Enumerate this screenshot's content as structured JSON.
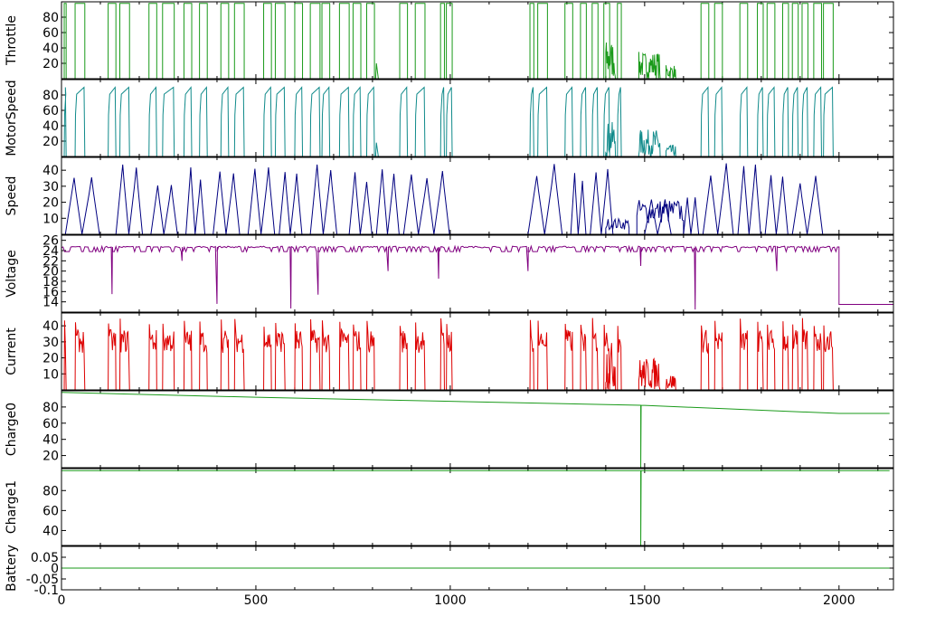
{
  "chart_data": [
    {
      "type": "line",
      "ylabel": "Throttle",
      "color": "#1a9a1a",
      "yticks": [
        20,
        40,
        60,
        80
      ],
      "ylim": [
        0,
        100
      ],
      "series": [
        {
          "style": "pulses",
          "pulses": [
            [
              7,
              12
            ],
            [
              35,
              60
            ],
            [
              120,
              140
            ],
            [
              150,
              175
            ],
            [
              225,
              245
            ],
            [
              260,
              290
            ],
            [
              315,
              335
            ],
            [
              355,
              375
            ],
            [
              410,
              430
            ],
            [
              445,
              470
            ],
            [
              520,
              540
            ],
            [
              550,
              575
            ],
            [
              600,
              620
            ],
            [
              640,
              665
            ],
            [
              670,
              690
            ],
            [
              715,
              740
            ],
            [
              750,
              770
            ],
            [
              785,
              805
            ],
            [
              870,
              890
            ],
            [
              910,
              935
            ],
            [
              975,
              985
            ],
            [
              990,
              1005
            ],
            [
              1205,
              1215
            ],
            [
              1225,
              1250
            ],
            [
              1295,
              1315
            ],
            [
              1335,
              1350
            ],
            [
              1365,
              1380
            ],
            [
              1395,
              1410
            ],
            [
              1430,
              1440
            ],
            [
              1645,
              1665
            ],
            [
              1680,
              1700
            ],
            [
              1745,
              1765
            ],
            [
              1790,
              1805
            ],
            [
              1815,
              1835
            ],
            [
              1855,
              1870
            ],
            [
              1880,
              1895
            ],
            [
              1905,
              1920
            ],
            [
              1935,
              1955
            ],
            [
              1960,
              1985
            ]
          ],
          "high": 98,
          "noisy": [
            [
              1400,
              1425,
              50
            ],
            [
              1485,
              1540,
              35
            ],
            [
              1555,
              1580,
              18
            ]
          ],
          "minor": [
            [
              808,
              815,
              20
            ]
          ]
        }
      ]
    },
    {
      "type": "line",
      "ylabel": "MotorSpeed",
      "color": "#0f8a8a",
      "yticks": [
        20,
        40,
        60,
        80
      ],
      "ylim": [
        0,
        100
      ],
      "series": [
        {
          "style": "humps",
          "pulses": [
            [
              7,
              12
            ],
            [
              35,
              60
            ],
            [
              120,
              140
            ],
            [
              150,
              175
            ],
            [
              225,
              245
            ],
            [
              260,
              290
            ],
            [
              315,
              335
            ],
            [
              355,
              375
            ],
            [
              410,
              430
            ],
            [
              445,
              470
            ],
            [
              520,
              540
            ],
            [
              550,
              575
            ],
            [
              600,
              620
            ],
            [
              640,
              665
            ],
            [
              670,
              690
            ],
            [
              715,
              740
            ],
            [
              750,
              770
            ],
            [
              785,
              805
            ],
            [
              870,
              890
            ],
            [
              910,
              935
            ],
            [
              975,
              985
            ],
            [
              990,
              1005
            ],
            [
              1205,
              1215
            ],
            [
              1225,
              1250
            ],
            [
              1295,
              1315
            ],
            [
              1335,
              1350
            ],
            [
              1365,
              1380
            ],
            [
              1395,
              1410
            ],
            [
              1430,
              1440
            ],
            [
              1645,
              1665
            ],
            [
              1680,
              1700
            ],
            [
              1745,
              1765
            ],
            [
              1790,
              1805
            ],
            [
              1815,
              1835
            ],
            [
              1855,
              1870
            ],
            [
              1880,
              1895
            ],
            [
              1905,
              1920
            ],
            [
              1935,
              1955
            ],
            [
              1960,
              1985
            ]
          ],
          "high": 90,
          "noisy": [
            [
              1400,
              1425,
              45
            ],
            [
              1485,
              1540,
              35
            ],
            [
              1555,
              1580,
              15
            ]
          ],
          "minor": [
            [
              808,
              815,
              18
            ]
          ]
        }
      ]
    },
    {
      "type": "line",
      "ylabel": "Speed",
      "color": "#000080",
      "yticks": [
        10,
        20,
        30,
        40
      ],
      "ylim": [
        0,
        48
      ],
      "series": [
        {
          "style": "speed",
          "segments": [
            [
              10,
              100
            ],
            [
              140,
              210
            ],
            [
              230,
              300
            ],
            [
              320,
              370
            ],
            [
              390,
              460
            ],
            [
              480,
              550
            ],
            [
              560,
              620
            ],
            [
              640,
              710
            ],
            [
              740,
              800
            ],
            [
              810,
              870
            ],
            [
              880,
              1000
            ],
            [
              1200,
              1290
            ],
            [
              1310,
              1350
            ],
            [
              1360,
              1420
            ],
            [
              1500,
              1570
            ],
            [
              1600,
              1640
            ],
            [
              1650,
              1730
            ],
            [
              1740,
              1800
            ],
            [
              1810,
              1870
            ],
            [
              1880,
              1960
            ]
          ],
          "peaks": [
            38,
            44,
            38,
            44,
            40,
            45,
            44,
            45,
            40,
            44,
            44,
            45,
            40,
            42,
            22,
            30,
            45,
            44,
            45,
            42
          ],
          "noisy": [
            [
              1400,
              1460,
              10
            ],
            [
              1480,
              1600,
              22
            ]
          ]
        }
      ]
    },
    {
      "type": "line",
      "ylabel": "Voltage",
      "color": "#800080",
      "yticks": [
        14,
        16,
        18,
        20,
        22,
        24,
        26
      ],
      "ylim": [
        12,
        27
      ],
      "series": [
        {
          "style": "voltage",
          "base": 24.7,
          "sag": 23.8,
          "end_x": 2000,
          "end_value": 13.5,
          "dips": [
            [
              130,
              15.5
            ],
            [
              310,
              22
            ],
            [
              400,
              13.6
            ],
            [
              590,
              12.7
            ],
            [
              660,
              15.4
            ],
            [
              840,
              20
            ],
            [
              970,
              18.5
            ],
            [
              1200,
              20
            ],
            [
              1490,
              21
            ],
            [
              1630,
              12.5
            ],
            [
              1840,
              20
            ]
          ]
        }
      ]
    },
    {
      "type": "line",
      "ylabel": "Current",
      "color": "#dd0000",
      "yticks": [
        10,
        20,
        30,
        40
      ],
      "ylim": [
        0,
        48
      ],
      "series": [
        {
          "style": "current",
          "pulses": [
            [
              7,
              12
            ],
            [
              35,
              60
            ],
            [
              120,
              140
            ],
            [
              150,
              175
            ],
            [
              225,
              245
            ],
            [
              260,
              290
            ],
            [
              315,
              335
            ],
            [
              355,
              375
            ],
            [
              410,
              430
            ],
            [
              445,
              470
            ],
            [
              520,
              540
            ],
            [
              550,
              575
            ],
            [
              600,
              620
            ],
            [
              640,
              665
            ],
            [
              670,
              690
            ],
            [
              715,
              740
            ],
            [
              750,
              770
            ],
            [
              785,
              805
            ],
            [
              870,
              890
            ],
            [
              910,
              935
            ],
            [
              975,
              985
            ],
            [
              990,
              1005
            ],
            [
              1205,
              1215
            ],
            [
              1225,
              1250
            ],
            [
              1295,
              1315
            ],
            [
              1335,
              1350
            ],
            [
              1365,
              1380
            ],
            [
              1395,
              1410
            ],
            [
              1430,
              1440
            ],
            [
              1645,
              1665
            ],
            [
              1680,
              1700
            ],
            [
              1745,
              1765
            ],
            [
              1790,
              1805
            ],
            [
              1815,
              1835
            ],
            [
              1855,
              1870
            ],
            [
              1880,
              1895
            ],
            [
              1905,
              1920
            ],
            [
              1935,
              1955
            ],
            [
              1960,
              1985
            ]
          ],
          "peak": 42,
          "noisy": [
            [
              1400,
              1425,
              30
            ],
            [
              1485,
              1540,
              20
            ],
            [
              1555,
              1580,
              10
            ]
          ]
        }
      ]
    },
    {
      "type": "line",
      "ylabel": "Charge0",
      "color": "#1a9a1a",
      "yticks": [
        20,
        40,
        60,
        80
      ],
      "ylim": [
        5,
        100
      ],
      "series": [
        {
          "style": "charge",
          "x": [
            0,
            500,
            1000,
            1500,
            2000,
            2130
          ],
          "y": [
            98,
            92,
            87,
            82,
            72,
            72
          ],
          "spike_x": 1490,
          "spike_low": 5
        }
      ]
    },
    {
      "type": "line",
      "ylabel": "Charge1",
      "color": "#1a9a1a",
      "yticks": [
        40,
        60,
        80
      ],
      "ylim": [
        25,
        102
      ],
      "series": [
        {
          "style": "charge",
          "x": [
            0,
            2130
          ],
          "y": [
            100,
            100
          ],
          "spike_x": 1490,
          "spike_low": 25
        }
      ]
    },
    {
      "type": "line",
      "ylabel": "Battery",
      "color": "#1a9a1a",
      "yticks": [
        -0.1,
        -0.05,
        0,
        0.05
      ],
      "ytick_labels": [
        "-0.1",
        "-0.05",
        "0",
        "0.05"
      ],
      "ylim": [
        -0.1,
        0.1
      ],
      "series": [
        {
          "style": "flat",
          "x": [
            0,
            2130
          ],
          "y": [
            0,
            0
          ]
        }
      ]
    }
  ],
  "x_axis": {
    "xlim": [
      0,
      2140
    ],
    "ticks": [
      0,
      500,
      1000,
      1500,
      2000
    ],
    "tick_labels": [
      "0",
      "500",
      "1000",
      "1500",
      "2000"
    ]
  }
}
